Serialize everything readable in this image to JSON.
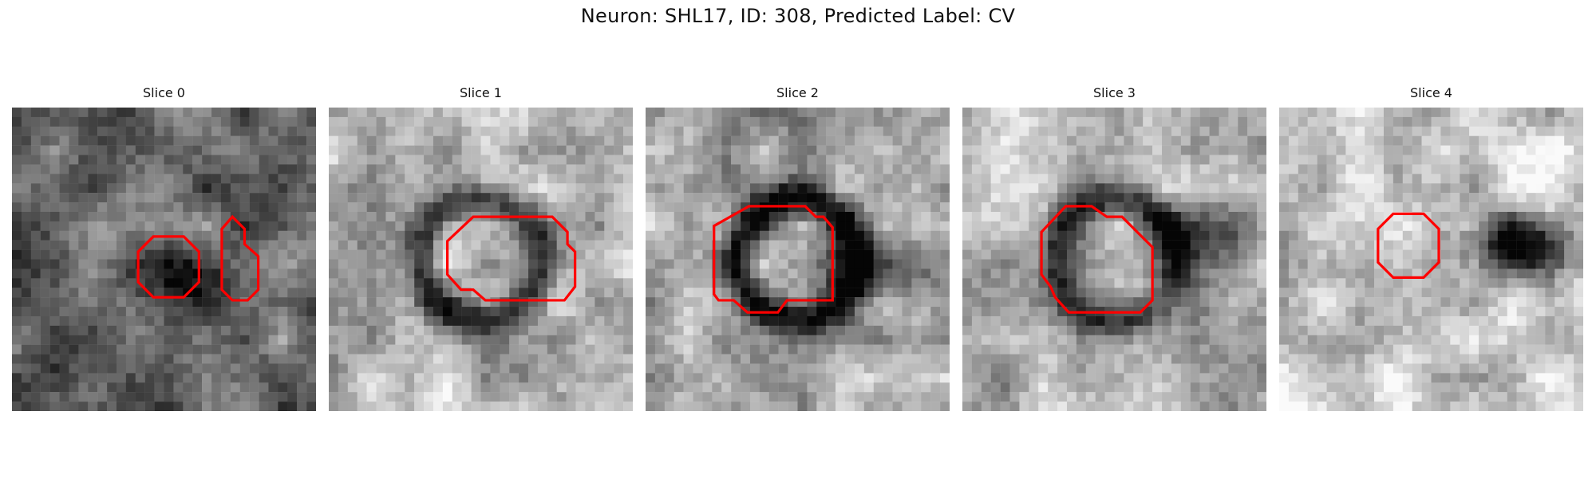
{
  "figure": {
    "title": "Neuron: SHL17, ID: 308, Predicted Label: CV"
  },
  "slices": [
    {
      "title": "Slice 0",
      "seed": 11,
      "base": 0.42,
      "ring": 0.0,
      "blob": [
        0.6,
        0.55,
        0.3,
        0.4
      ],
      "contours": [
        [
          [
            9.3,
            8.5
          ],
          [
            11.3,
            8.5
          ],
          [
            12.3,
            9.5
          ],
          [
            12.3,
            11.5
          ],
          [
            11.3,
            12.5
          ],
          [
            9.3,
            12.5
          ],
          [
            8.3,
            11.5
          ],
          [
            8.3,
            9.5
          ]
        ],
        [
          [
            14.5,
            7.2
          ],
          [
            15.3,
            8.0
          ],
          [
            15.3,
            9.0
          ],
          [
            16.2,
            9.8
          ],
          [
            16.2,
            12.0
          ],
          [
            15.5,
            12.7
          ],
          [
            14.5,
            12.7
          ],
          [
            13.8,
            12.0
          ],
          [
            13.8,
            8.0
          ]
        ]
      ]
    },
    {
      "title": "Slice 1",
      "seed": 23,
      "base": 0.72,
      "ring": 0.55,
      "blob": [
        0.5,
        0.5,
        0.0,
        0.0
      ],
      "contours": [
        [
          [
            9.5,
            7.2
          ],
          [
            14.7,
            7.2
          ],
          [
            15.7,
            8.2
          ],
          [
            15.7,
            9.0
          ],
          [
            16.2,
            9.5
          ],
          [
            16.2,
            11.8
          ],
          [
            15.5,
            12.7
          ],
          [
            10.3,
            12.7
          ],
          [
            9.5,
            12.0
          ],
          [
            8.7,
            12.0
          ],
          [
            7.8,
            11.0
          ],
          [
            7.8,
            8.8
          ]
        ]
      ]
    },
    {
      "title": "Slice 2",
      "seed": 37,
      "base": 0.66,
      "ring": 0.6,
      "blob": [
        0.8,
        0.55,
        0.55,
        0.3
      ],
      "contours": [
        [
          [
            6.8,
            6.5
          ],
          [
            10.5,
            6.5
          ],
          [
            11.2,
            7.2
          ],
          [
            11.7,
            7.2
          ],
          [
            12.3,
            7.9
          ],
          [
            12.3,
            12.7
          ],
          [
            9.3,
            12.7
          ],
          [
            8.7,
            13.5
          ],
          [
            6.7,
            13.5
          ],
          [
            5.8,
            12.7
          ],
          [
            4.8,
            12.7
          ],
          [
            4.5,
            12.3
          ],
          [
            4.5,
            7.8
          ]
        ]
      ]
    },
    {
      "title": "Slice 3",
      "seed": 51,
      "base": 0.7,
      "ring": 0.55,
      "blob": [
        0.78,
        0.4,
        0.5,
        0.35
      ],
      "contours": [
        [
          [
            6.8,
            6.5
          ],
          [
            8.5,
            6.5
          ],
          [
            9.5,
            7.2
          ],
          [
            10.5,
            7.2
          ],
          [
            11.5,
            8.2
          ],
          [
            12.5,
            9.2
          ],
          [
            12.5,
            12.7
          ],
          [
            11.7,
            13.5
          ],
          [
            7.0,
            13.5
          ],
          [
            6.1,
            12.5
          ],
          [
            5.8,
            11.8
          ],
          [
            5.2,
            11.0
          ],
          [
            5.2,
            8.2
          ]
        ]
      ]
    },
    {
      "title": "Slice 4",
      "seed": 67,
      "base": 0.82,
      "ring": 0.0,
      "blob": [
        0.78,
        0.45,
        0.55,
        0.75
      ],
      "contours": [
        [
          [
            7.5,
            7.0
          ],
          [
            9.5,
            7.0
          ],
          [
            10.5,
            8.0
          ],
          [
            10.5,
            10.2
          ],
          [
            9.5,
            11.2
          ],
          [
            7.5,
            11.2
          ],
          [
            6.5,
            10.2
          ],
          [
            6.5,
            8.0
          ]
        ]
      ]
    }
  ],
  "colors": {
    "contour": "#ff0000"
  }
}
